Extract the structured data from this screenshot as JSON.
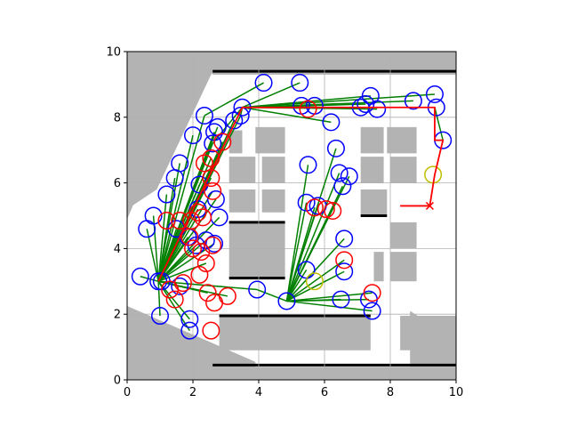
{
  "chart_data": {
    "type": "scatter",
    "title": "",
    "xlabel": "",
    "ylabel": "",
    "xlim": [
      0,
      10
    ],
    "ylim": [
      0,
      10
    ],
    "grid": true,
    "x_ticks": [
      0,
      2,
      4,
      6,
      8,
      10
    ],
    "y_ticks": [
      0,
      2,
      4,
      6,
      8,
      10
    ],
    "x_tick_labels": [
      "0",
      "2",
      "4",
      "6",
      "8",
      "10"
    ],
    "y_tick_labels": [
      "0",
      "2",
      "4",
      "6",
      "8",
      "10"
    ],
    "colors": {
      "obstacle": "#b3b3b3",
      "wall": "#000000",
      "node_blue": "#0000ff",
      "node_red": "#ff0000",
      "node_olive": "#bfbf00",
      "edge_green": "#008000",
      "path_red": "#ff0000",
      "grid": "#b0b0b0"
    },
    "obstacles": [
      {
        "polygon": [
          [
            0,
            10
          ],
          [
            2.2,
            10
          ],
          [
            0,
            4.9
          ]
        ]
      },
      {
        "polygon": [
          [
            0,
            10
          ],
          [
            2.6,
            10
          ],
          [
            2.6,
            9.4
          ],
          [
            0.9,
            5.8
          ],
          [
            0,
            5.2
          ]
        ]
      },
      {
        "polygon": [
          [
            0,
            0
          ],
          [
            0,
            2.25
          ],
          [
            3.9,
            0.55
          ],
          [
            3.9,
            0
          ]
        ]
      },
      {
        "polygon": [
          [
            0,
            0
          ],
          [
            10,
            0
          ],
          [
            10,
            0.4
          ],
          [
            0,
            0.4
          ]
        ]
      },
      {
        "polygon": [
          [
            8.6,
            2.1
          ],
          [
            10,
            1.2
          ],
          [
            10,
            0.4
          ],
          [
            8.6,
            0.4
          ]
        ]
      },
      {
        "polygon": [
          [
            2.2,
            10
          ],
          [
            10,
            10
          ],
          [
            10,
            9.3
          ],
          [
            2.6,
            9.3
          ]
        ]
      },
      {
        "polygon": [
          [
            2.8,
            1.95
          ],
          [
            7.4,
            1.95
          ],
          [
            7.4,
            0.9
          ],
          [
            2.8,
            0.9
          ]
        ]
      },
      {
        "polygon": [
          [
            8.3,
            1.95
          ],
          [
            10,
            1.95
          ],
          [
            10,
            0.9
          ],
          [
            8.3,
            0.9
          ]
        ]
      },
      {
        "polygon": [
          [
            3.1,
            7.6
          ],
          [
            3.5,
            7.6
          ],
          [
            3.5,
            6.9
          ],
          [
            3.1,
            6.9
          ]
        ]
      },
      {
        "polygon": [
          [
            3.9,
            7.7
          ],
          [
            4.8,
            7.7
          ],
          [
            4.8,
            6.9
          ],
          [
            3.9,
            6.9
          ]
        ]
      },
      {
        "polygon": [
          [
            3.1,
            6.8
          ],
          [
            3.9,
            6.8
          ],
          [
            3.9,
            6.0
          ],
          [
            3.1,
            6.0
          ]
        ]
      },
      {
        "polygon": [
          [
            4.1,
            6.8
          ],
          [
            4.8,
            6.8
          ],
          [
            4.8,
            6.0
          ],
          [
            4.1,
            6.0
          ]
        ]
      },
      {
        "polygon": [
          [
            3.1,
            5.8
          ],
          [
            3.9,
            5.8
          ],
          [
            3.9,
            5.1
          ],
          [
            3.1,
            5.1
          ]
        ]
      },
      {
        "polygon": [
          [
            4.1,
            5.8
          ],
          [
            4.8,
            5.8
          ],
          [
            4.8,
            5.1
          ],
          [
            4.1,
            5.1
          ]
        ]
      },
      {
        "polygon": [
          [
            3.1,
            4.8
          ],
          [
            4.8,
            4.8
          ],
          [
            4.8,
            3.1
          ],
          [
            3.1,
            3.1
          ]
        ]
      },
      {
        "polygon": [
          [
            7.1,
            7.7
          ],
          [
            7.8,
            7.7
          ],
          [
            7.8,
            6.9
          ],
          [
            7.1,
            6.9
          ]
        ]
      },
      {
        "polygon": [
          [
            7.9,
            7.7
          ],
          [
            8.8,
            7.7
          ],
          [
            8.8,
            6.9
          ],
          [
            7.9,
            6.9
          ]
        ]
      },
      {
        "polygon": [
          [
            7.1,
            6.8
          ],
          [
            7.8,
            6.8
          ],
          [
            7.8,
            6.0
          ],
          [
            7.1,
            6.0
          ]
        ]
      },
      {
        "polygon": [
          [
            8.0,
            6.8
          ],
          [
            8.8,
            6.8
          ],
          [
            8.8,
            6.0
          ],
          [
            8.0,
            6.0
          ]
        ]
      },
      {
        "polygon": [
          [
            7.1,
            5.8
          ],
          [
            7.9,
            5.8
          ],
          [
            7.9,
            5.0
          ],
          [
            7.1,
            5.0
          ]
        ]
      },
      {
        "polygon": [
          [
            8.0,
            4.8
          ],
          [
            8.8,
            4.8
          ],
          [
            8.8,
            4.0
          ],
          [
            8.0,
            4.0
          ]
        ]
      },
      {
        "polygon": [
          [
            8.0,
            3.9
          ],
          [
            8.8,
            3.9
          ],
          [
            8.8,
            3.0
          ],
          [
            8.0,
            3.0
          ]
        ]
      },
      {
        "polygon": [
          [
            7.5,
            3.9
          ],
          [
            7.8,
            3.9
          ],
          [
            7.8,
            3.0
          ],
          [
            7.5,
            3.0
          ]
        ]
      }
    ],
    "walls": [
      {
        "x1": 2.6,
        "y1": 9.4,
        "x2": 10,
        "y2": 9.4
      },
      {
        "x1": 2.6,
        "y1": 0.45,
        "x2": 10,
        "y2": 0.45
      },
      {
        "x1": 2.8,
        "y1": 1.95,
        "x2": 7.4,
        "y2": 1.95
      },
      {
        "x1": 3.1,
        "y1": 4.8,
        "x2": 4.8,
        "y2": 4.8
      },
      {
        "x1": 3.1,
        "y1": 3.1,
        "x2": 4.8,
        "y2": 3.1
      },
      {
        "x1": 7.1,
        "y1": 5.0,
        "x2": 7.9,
        "y2": 5.0
      }
    ],
    "series": [
      {
        "role": "nodes-blue",
        "x": [
          1.05,
          2.35,
          2.65,
          2.75,
          3.5,
          4.15,
          5.25,
          5.3,
          6.2,
          7.25,
          7.4,
          8.7,
          9.35,
          9.4,
          9.6,
          7.6,
          7.1,
          5.7,
          3.25,
          3.45,
          2.6,
          2.0,
          1.6,
          1.45,
          1.2,
          0.8,
          0.6,
          0.4,
          0.95,
          1.6,
          2.1,
          2.4,
          2.65,
          2.8,
          2.7,
          2.2,
          1.85,
          1.5,
          3.95,
          4.85,
          5.5,
          5.45,
          5.45,
          5.8,
          6.35,
          6.45,
          6.55,
          6.75,
          6.6,
          6.6,
          6.5,
          7.35,
          7.45,
          1.9,
          1.9,
          1.0,
          2.15
        ],
        "y": [
          3.0,
          8.05,
          7.55,
          7.7,
          8.3,
          9.05,
          9.05,
          8.35,
          7.85,
          8.4,
          8.65,
          8.5,
          8.7,
          8.3,
          7.3,
          8.25,
          8.3,
          8.35,
          7.9,
          8.05,
          7.2,
          7.45,
          6.6,
          6.15,
          5.65,
          5.0,
          4.6,
          3.15,
          3.0,
          2.85,
          4.1,
          4.25,
          4.15,
          4.95,
          5.5,
          5.95,
          4.35,
          4.6,
          2.75,
          2.4,
          6.55,
          5.4,
          3.35,
          5.3,
          7.05,
          6.3,
          5.9,
          6.2,
          4.3,
          3.3,
          2.45,
          2.45,
          2.1,
          1.5,
          1.85,
          1.95,
          5.2
        ],
        "size": 0.25
      },
      {
        "role": "nodes-red",
        "x": [
          5.5,
          2.55,
          2.9,
          2.35,
          2.55,
          2.6,
          2.15,
          1.2,
          1.6,
          1.95,
          2.3,
          2.6,
          2.4,
          2.2,
          1.7,
          1.45,
          1.3,
          2.45,
          2.65,
          3.05,
          5.7,
          6.05,
          6.25,
          6.6,
          7.45,
          2.55,
          2.0,
          1.9,
          2.25
        ],
        "y": [
          8.25,
          6.75,
          7.25,
          6.6,
          6.15,
          5.75,
          5.1,
          4.85,
          4.85,
          4.85,
          4.95,
          4.1,
          3.55,
          3.2,
          2.95,
          2.45,
          2.75,
          2.65,
          2.35,
          2.55,
          5.25,
          5.2,
          5.15,
          3.65,
          2.65,
          1.5,
          4.0,
          4.35,
          3.9
        ],
        "size": 0.25
      },
      {
        "role": "nodes-olive",
        "x": [
          9.3,
          5.7
        ],
        "y": [
          6.25,
          3.0
        ],
        "size": 0.25
      },
      {
        "role": "edges-green",
        "segments": [
          [
            0.95,
            3.0,
            2.35,
            8.05
          ],
          [
            0.95,
            3.0,
            2.65,
            7.55
          ],
          [
            0.95,
            3.0,
            2.75,
            7.7
          ],
          [
            0.95,
            3.0,
            2.6,
            7.2
          ],
          [
            0.95,
            3.0,
            2.0,
            7.45
          ],
          [
            0.95,
            3.0,
            1.6,
            6.6
          ],
          [
            0.95,
            3.0,
            1.45,
            6.15
          ],
          [
            0.95,
            3.0,
            1.2,
            5.65
          ],
          [
            0.95,
            3.0,
            0.8,
            5.0
          ],
          [
            0.95,
            3.0,
            0.6,
            4.6
          ],
          [
            0.95,
            3.0,
            0.4,
            3.15
          ],
          [
            0.95,
            3.0,
            1.6,
            2.85
          ],
          [
            0.95,
            3.0,
            2.1,
            4.1
          ],
          [
            0.95,
            3.0,
            2.4,
            4.25
          ],
          [
            0.95,
            3.0,
            2.65,
            4.15
          ],
          [
            0.95,
            3.0,
            2.8,
            4.95
          ],
          [
            0.95,
            3.0,
            2.7,
            5.5
          ],
          [
            0.95,
            3.0,
            2.2,
            5.95
          ],
          [
            0.95,
            3.0,
            1.85,
            4.35
          ],
          [
            0.95,
            3.0,
            1.5,
            4.6
          ],
          [
            0.95,
            3.0,
            2.15,
            5.2
          ],
          [
            0.95,
            3.0,
            2.55,
            6.75
          ],
          [
            0.95,
            3.0,
            2.9,
            7.25
          ],
          [
            0.95,
            3.0,
            2.35,
            6.6
          ],
          [
            0.95,
            3.0,
            2.55,
            6.15
          ],
          [
            0.95,
            3.0,
            2.6,
            5.75
          ],
          [
            0.95,
            3.0,
            3.95,
            2.75
          ],
          [
            0.95,
            3.0,
            3.05,
            2.55
          ],
          [
            0.95,
            3.0,
            2.4,
            3.55
          ],
          [
            0.95,
            3.0,
            1.9,
            1.85
          ],
          [
            0.95,
            3.0,
            1.9,
            1.5
          ],
          [
            0.95,
            3.0,
            1.0,
            1.95
          ],
          [
            0.95,
            3.0,
            2.45,
            2.65
          ],
          [
            0.95,
            3.0,
            3.25,
            7.9
          ],
          [
            0.95,
            3.0,
            3.45,
            8.05
          ],
          [
            2.35,
            8.05,
            4.15,
            9.05
          ],
          [
            3.5,
            8.3,
            5.25,
            9.05
          ],
          [
            3.5,
            8.3,
            5.3,
            8.35
          ],
          [
            3.5,
            8.3,
            6.2,
            7.85
          ],
          [
            3.5,
            8.3,
            7.25,
            8.4
          ],
          [
            3.5,
            8.3,
            7.4,
            8.65
          ],
          [
            3.5,
            8.3,
            8.7,
            8.5
          ],
          [
            3.5,
            8.3,
            9.35,
            8.7
          ],
          [
            3.5,
            8.3,
            7.6,
            8.25
          ],
          [
            3.5,
            8.3,
            7.1,
            8.3
          ],
          [
            3.5,
            8.3,
            5.7,
            8.35
          ],
          [
            3.5,
            8.3,
            3.45,
            8.05
          ],
          [
            9.35,
            8.3,
            9.6,
            7.3
          ],
          [
            2.6,
            7.2,
            3.5,
            8.3
          ],
          [
            4.85,
            2.4,
            5.5,
            6.55
          ],
          [
            4.85,
            2.4,
            5.45,
            5.4
          ],
          [
            4.85,
            2.4,
            5.45,
            3.35
          ],
          [
            4.85,
            2.4,
            5.8,
            5.3
          ],
          [
            4.85,
            2.4,
            6.35,
            7.05
          ],
          [
            4.85,
            2.4,
            6.45,
            6.3
          ],
          [
            4.85,
            2.4,
            6.55,
            5.9
          ],
          [
            4.85,
            2.4,
            6.75,
            6.2
          ],
          [
            4.85,
            2.4,
            6.6,
            4.3
          ],
          [
            4.85,
            2.4,
            6.6,
            3.3
          ],
          [
            4.85,
            2.4,
            6.5,
            2.45
          ],
          [
            4.85,
            2.4,
            7.35,
            2.45
          ],
          [
            4.85,
            2.4,
            7.45,
            2.1
          ],
          [
            4.85,
            2.4,
            7.45,
            2.65
          ],
          [
            4.85,
            2.4,
            6.6,
            3.65
          ],
          [
            4.85,
            2.4,
            5.7,
            5.25
          ],
          [
            4.85,
            2.4,
            3.95,
            2.75
          ]
        ]
      },
      {
        "role": "path-red",
        "x": [
          0.95,
          3.5,
          9.35,
          9.35,
          9.6,
          9.35,
          9.2,
          8.3
        ],
        "y": [
          3.0,
          8.3,
          8.3,
          7.3,
          7.3,
          6.25,
          5.3,
          5.3
        ]
      },
      {
        "role": "goal-marker",
        "x": [
          9.2
        ],
        "y": [
          5.3
        ]
      }
    ]
  }
}
